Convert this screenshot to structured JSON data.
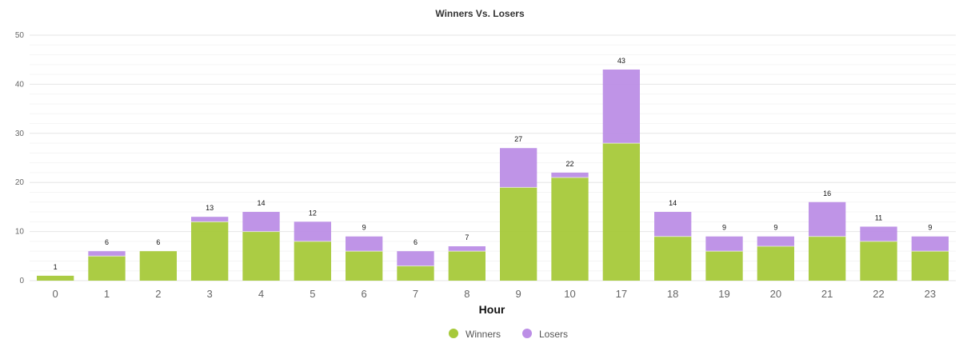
{
  "chart_data": {
    "type": "bar",
    "stacked": true,
    "title": "Winners Vs. Losers",
    "xlabel": "Hour",
    "ylabel": "",
    "ylim": [
      0,
      50
    ],
    "yticks": [
      0,
      10,
      20,
      30,
      40,
      50
    ],
    "grid": true,
    "legend_position": "bottom",
    "categories": [
      "0",
      "1",
      "2",
      "3",
      "4",
      "5",
      "6",
      "7",
      "8",
      "9",
      "10",
      "17",
      "18",
      "19",
      "20",
      "21",
      "22",
      "23"
    ],
    "series": [
      {
        "name": "Winners",
        "color": "#a6c93a",
        "values": [
          1,
          5,
          6,
          12,
          10,
          8,
          6,
          3,
          6,
          19,
          21,
          28,
          9,
          6,
          7,
          9,
          8,
          6
        ]
      },
      {
        "name": "Losers",
        "color": "#bc8ee6",
        "values": [
          0,
          1,
          0,
          1,
          4,
          4,
          3,
          3,
          1,
          8,
          1,
          15,
          5,
          3,
          2,
          7,
          3,
          3
        ]
      }
    ],
    "totals": [
      1,
      6,
      6,
      13,
      14,
      12,
      9,
      6,
      7,
      27,
      22,
      43,
      14,
      9,
      9,
      16,
      11,
      9
    ]
  }
}
